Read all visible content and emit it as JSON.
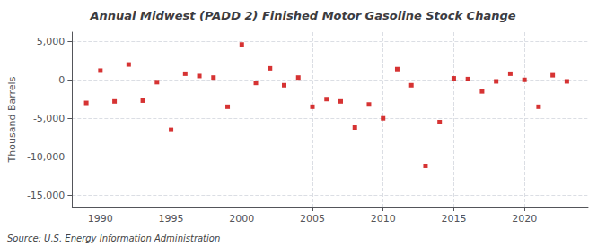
{
  "chart_data": {
    "type": "scatter",
    "title": "Annual Midwest (PADD 2) Finished Motor Gasoline Stock Change",
    "ylabel": "Thousand Barrels",
    "annotations": [
      "Source: U.S. Energy Information Administration"
    ],
    "x": [
      1989,
      1990,
      1991,
      1992,
      1993,
      1994,
      1995,
      1996,
      1997,
      1998,
      1999,
      2000,
      2001,
      2002,
      2003,
      2004,
      2005,
      2006,
      2007,
      2008,
      2009,
      2010,
      2011,
      2012,
      2013,
      2014,
      2015,
      2016,
      2017,
      2018,
      2019,
      2020,
      2021,
      2022,
      2023
    ],
    "values": [
      -3000,
      1200,
      -2800,
      2000,
      -2700,
      -300,
      -6500,
      800,
      500,
      300,
      -3500,
      4600,
      -400,
      1500,
      -700,
      300,
      -3500,
      -2500,
      -2800,
      -6200,
      -3200,
      -5000,
      1400,
      -700,
      -11200,
      -5500,
      200,
      100,
      -1500,
      -200,
      800,
      0,
      -3500,
      600,
      -200
    ],
    "color": "#cc0000",
    "marker": "square",
    "xlim": [
      1988.0,
      2024.5
    ],
    "ylim": [
      -16500,
      6200
    ],
    "xticks": [
      1990,
      1995,
      2000,
      2005,
      2010,
      2015,
      2020
    ],
    "yticks": [
      {
        "value": 5000,
        "label": "5,000"
      },
      0,
      {
        "value": -5000,
        "label": "-5,000"
      },
      {
        "value": -10000,
        "label": "-10,000"
      },
      {
        "value": -15000,
        "label": "-15,000"
      }
    ],
    "grid": true
  }
}
